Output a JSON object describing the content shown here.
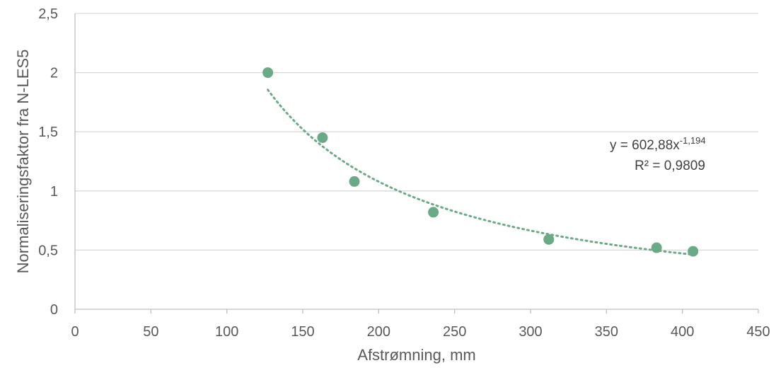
{
  "chart_data": {
    "type": "scatter",
    "xlabel": "Afstrømning, mm",
    "ylabel": "Normaliseringsfaktor fra N-LES5",
    "xlim": [
      0,
      450
    ],
    "ylim": [
      0,
      2.5
    ],
    "x_ticks": [
      0,
      50,
      100,
      150,
      200,
      250,
      300,
      350,
      400,
      450
    ],
    "x_tick_labels": [
      "0",
      "50",
      "100",
      "150",
      "200",
      "250",
      "300",
      "350",
      "400",
      "450"
    ],
    "y_ticks": [
      0,
      0.5,
      1,
      1.5,
      2,
      2.5
    ],
    "y_tick_labels": [
      "0",
      "0,5",
      "1",
      "1,5",
      "2",
      "2,5"
    ],
    "grid": "horizontal",
    "legend": "none",
    "series": [
      {
        "points": [
          {
            "x": 127,
            "y": 2.0
          },
          {
            "x": 163,
            "y": 1.45
          },
          {
            "x": 184,
            "y": 1.08
          },
          {
            "x": 236,
            "y": 0.82
          },
          {
            "x": 312,
            "y": 0.59
          },
          {
            "x": 383,
            "y": 0.52
          },
          {
            "x": 407,
            "y": 0.49
          }
        ],
        "color": "#6aaa86"
      }
    ],
    "trendline": {
      "kind": "power",
      "a": 602.88,
      "b": -1.194,
      "x_range": [
        127,
        407
      ],
      "style": "dotted",
      "color": "#6aaa86"
    },
    "annotation": {
      "equation_text": "y = 602,88x",
      "equation_exponent": "-1,194",
      "r2_text": "R² = 0,9809"
    },
    "colors": {
      "grid": "#d9d9d9",
      "axis": "#bfbfbf",
      "text": "#595959"
    }
  }
}
